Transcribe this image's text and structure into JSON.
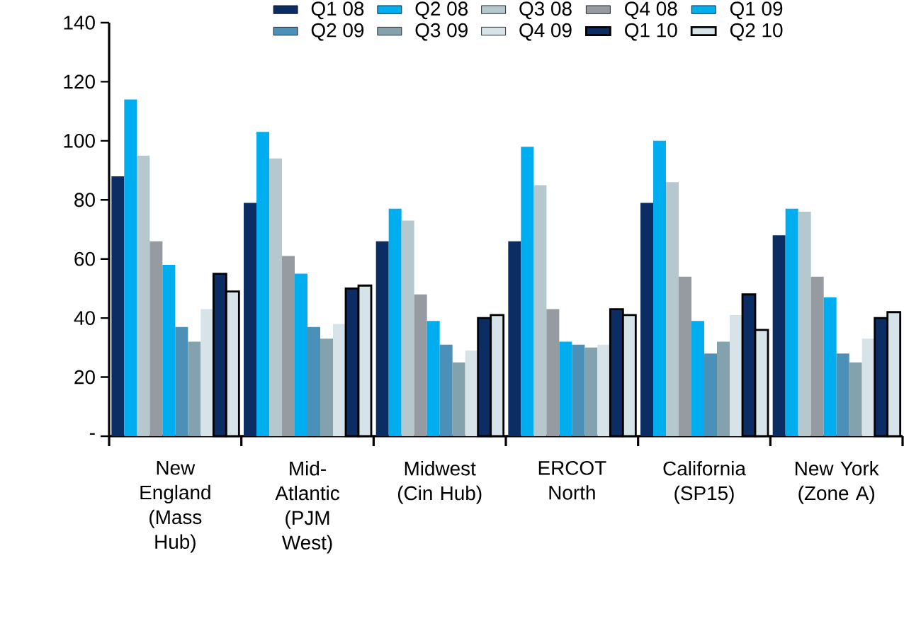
{
  "chart_data": {
    "type": "bar",
    "categories": [
      "New England (Mass Hub)",
      "Mid-Atlantic (PJM West)",
      "Midwest (Cin Hub)",
      "ERCOT North",
      "California (SP15)",
      "New York (Zone A)"
    ],
    "series": [
      {
        "name": "Q1 08",
        "color": "#0c2d63",
        "values": [
          88,
          79,
          66,
          66,
          79,
          68
        ]
      },
      {
        "name": "Q2 08",
        "color": "#00adef",
        "values": [
          114,
          103,
          77,
          98,
          100,
          77
        ]
      },
      {
        "name": "Q3 08",
        "color": "#b5c8ce",
        "values": [
          95,
          94,
          73,
          85,
          86,
          76
        ]
      },
      {
        "name": "Q4 08",
        "color": "#959ba1",
        "values": [
          66,
          61,
          48,
          43,
          54,
          54
        ]
      },
      {
        "name": "Q1 09",
        "color": "#00adef",
        "values": [
          58,
          55,
          39,
          32,
          39,
          47
        ]
      },
      {
        "name": "Q2 09",
        "color": "#4a90b8",
        "values": [
          37,
          37,
          31,
          31,
          28,
          28
        ]
      },
      {
        "name": "Q3 09",
        "color": "#84a2ad",
        "values": [
          32,
          33,
          25,
          30,
          32,
          25
        ]
      },
      {
        "name": "Q4 09",
        "color": "#d6e4ea",
        "values": [
          43,
          38,
          29,
          31,
          41,
          33
        ]
      },
      {
        "name": "Q1 10",
        "color": "#0c2d63",
        "values": [
          55,
          50,
          40,
          43,
          48,
          40
        ]
      },
      {
        "name": "Q2 10",
        "color": "#d6e4ea",
        "values": [
          49,
          51,
          41,
          41,
          36,
          42
        ]
      }
    ],
    "ylim": [
      0,
      140
    ],
    "yticks": [
      {
        "value": 0,
        "label": "-"
      },
      20,
      40,
      60,
      80,
      100,
      120,
      140
    ],
    "grid": false,
    "legend": "top"
  }
}
